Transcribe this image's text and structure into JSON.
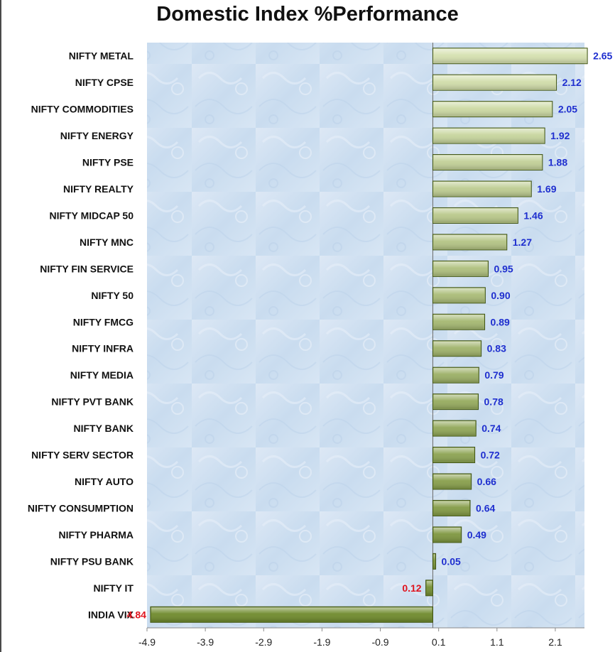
{
  "chart_data": {
    "type": "bar",
    "orientation": "horizontal",
    "title": "Domestic Index %Performance",
    "xlabel": "",
    "ylabel": "",
    "categories": [
      "NIFTY METAL",
      "NIFTY CPSE",
      "NIFTY COMMODITIES",
      "NIFTY ENERGY",
      "NIFTY PSE",
      "NIFTY REALTY",
      "NIFTY MIDCAP 50",
      "NIFTY MNC",
      "NIFTY FIN SERVICE",
      "NIFTY 50",
      "NIFTY FMCG",
      "NIFTY INFRA",
      "NIFTY MEDIA",
      "NIFTY PVT BANK",
      "NIFTY BANK",
      "NIFTY SERV SECTOR",
      "NIFTY AUTO",
      "NIFTY CONSUMPTION",
      "NIFTY PHARMA",
      "NIFTY PSU BANK",
      "NIFTY IT",
      "INDIA VIX"
    ],
    "values": [
      2.65,
      2.12,
      2.05,
      1.92,
      1.88,
      1.69,
      1.46,
      1.27,
      0.95,
      0.9,
      0.89,
      0.83,
      0.79,
      0.78,
      0.74,
      0.72,
      0.66,
      0.64,
      0.49,
      0.05,
      -0.12,
      -4.84
    ],
    "value_labels": [
      "2.65",
      "2.12",
      "2.05",
      "1.92",
      "1.88",
      "1.69",
      "1.46",
      "1.27",
      "0.95",
      "0.90",
      "0.89",
      "0.83",
      "0.79",
      "0.78",
      "0.74",
      "0.72",
      "0.66",
      "0.64",
      "0.49",
      "0.05",
      "0.12",
      "4.84"
    ],
    "xlim": [
      -4.9,
      2.6
    ],
    "xticks": [
      -4.9,
      -3.9,
      -2.9,
      -1.9,
      -0.9,
      0.1,
      1.1,
      2.1
    ],
    "xtick_labels": [
      "-4.9",
      "-3.9",
      "-2.9",
      "-1.9",
      "-0.9",
      "0.1",
      "1.1",
      "2.1"
    ],
    "grid": false,
    "legend": "none",
    "colors": {
      "positive_label": "#1f2fcf",
      "negative_label": "#e0141e",
      "bar_light": "#d6e1b0",
      "bar_dark": "#6f8a2c",
      "bar_edge": "#3f5214",
      "plot_background": "#cfe0f3"
    }
  }
}
